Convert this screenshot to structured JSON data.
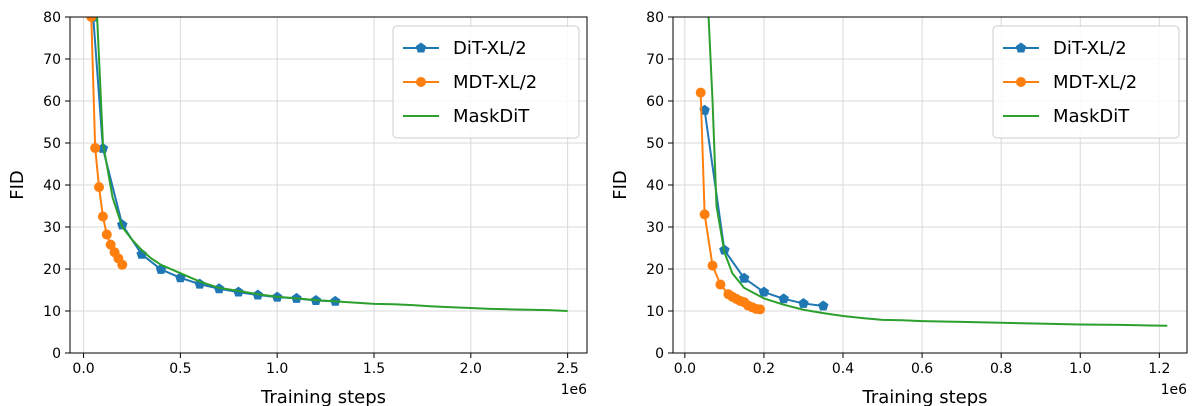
{
  "colors": {
    "dit": "#1f77b4",
    "mdt": "#ff7f0e",
    "maskdit": "#2ca02c",
    "grid": "#d9d9d9"
  },
  "chart_data": [
    {
      "type": "line",
      "xlabel": "Training steps",
      "ylabel": "FID",
      "x_offset_text": "1e6",
      "xlim": [
        -0.07,
        2.6
      ],
      "ylim": [
        0,
        80
      ],
      "xticks": [
        0.0,
        0.5,
        1.0,
        1.5,
        2.0,
        2.5
      ],
      "xtick_labels": [
        "0.0",
        "0.5",
        "1.0",
        "1.5",
        "2.0",
        "2.5"
      ],
      "yticks": [
        0,
        10,
        20,
        30,
        40,
        50,
        60,
        70,
        80
      ],
      "ytick_labels": [
        "0",
        "10",
        "20",
        "30",
        "40",
        "50",
        "60",
        "70",
        "80"
      ],
      "grid": true,
      "legend_position": "top-right",
      "series": [
        {
          "name": "DiT-XL/2",
          "marker": "pentagon",
          "x": [
            0.05,
            0.1,
            0.2,
            0.3,
            0.4,
            0.5,
            0.6,
            0.7,
            0.8,
            0.9,
            1.0,
            1.1,
            1.2,
            1.3
          ],
          "y": [
            80,
            48.7,
            30.5,
            23.5,
            19.9,
            17.9,
            16.4,
            15.3,
            14.5,
            13.8,
            13.3,
            13.0,
            12.5,
            12.3
          ]
        },
        {
          "name": "MDT-XL/2",
          "marker": "circle",
          "x": [
            0.04,
            0.06,
            0.08,
            0.1,
            0.12,
            0.14,
            0.16,
            0.18,
            0.2
          ],
          "y": [
            80,
            48.8,
            39.5,
            32.5,
            28.2,
            25.8,
            24.0,
            22.5,
            21.0
          ]
        },
        {
          "name": "MaskDiT",
          "marker": "none",
          "x": [
            0.07,
            0.1,
            0.15,
            0.2,
            0.25,
            0.3,
            0.35,
            0.4,
            0.5,
            0.6,
            0.7,
            0.8,
            0.9,
            1.0,
            1.1,
            1.2,
            1.3,
            1.4,
            1.5,
            1.6,
            1.7,
            1.8,
            1.9,
            2.0,
            2.1,
            2.2,
            2.3,
            2.4,
            2.5
          ],
          "y": [
            80,
            50,
            37,
            30,
            27,
            24.5,
            22.5,
            21,
            19,
            17,
            15.5,
            14.8,
            14.0,
            13.4,
            13.0,
            12.6,
            12.3,
            12.0,
            11.7,
            11.6,
            11.4,
            11.1,
            10.9,
            10.7,
            10.5,
            10.4,
            10.3,
            10.2,
            10.0
          ]
        }
      ]
    },
    {
      "type": "line",
      "xlabel": "Training steps",
      "ylabel": "FID",
      "x_offset_text": "1e6",
      "xlim": [
        -0.03,
        1.27
      ],
      "ylim": [
        0,
        80
      ],
      "xticks": [
        0.0,
        0.2,
        0.4,
        0.6,
        0.8,
        1.0,
        1.2
      ],
      "xtick_labels": [
        "0.0",
        "0.2",
        "0.4",
        "0.6",
        "0.8",
        "1.0",
        "1.2"
      ],
      "yticks": [
        0,
        10,
        20,
        30,
        40,
        50,
        60,
        70,
        80
      ],
      "ytick_labels": [
        "0",
        "10",
        "20",
        "30",
        "40",
        "50",
        "60",
        "70",
        "80"
      ],
      "grid": true,
      "legend_position": "top-right",
      "series": [
        {
          "name": "DiT-XL/2",
          "marker": "pentagon",
          "x": [
            0.05,
            0.1,
            0.15,
            0.2,
            0.25,
            0.3,
            0.35
          ],
          "y": [
            57.8,
            24.5,
            17.8,
            14.5,
            12.9,
            11.8,
            11.2
          ]
        },
        {
          "name": "MDT-XL/2",
          "marker": "circle",
          "x": [
            0.04,
            0.05,
            0.07,
            0.09,
            0.11,
            0.12,
            0.13,
            0.14,
            0.15,
            0.16,
            0.17,
            0.18,
            0.19
          ],
          "y": [
            62,
            33,
            20.8,
            16.3,
            14,
            13.4,
            12.9,
            12.4,
            12.1,
            11.3,
            10.9,
            10.5,
            10.4
          ]
        },
        {
          "name": "MaskDiT",
          "marker": "none",
          "x": [
            0.06,
            0.07,
            0.08,
            0.1,
            0.12,
            0.15,
            0.2,
            0.25,
            0.3,
            0.35,
            0.4,
            0.45,
            0.5,
            0.55,
            0.6,
            0.7,
            0.8,
            0.9,
            1.0,
            1.1,
            1.15,
            1.22
          ],
          "y": [
            80,
            60,
            35,
            24,
            19,
            15.5,
            13,
            11.5,
            10.3,
            9.5,
            8.8,
            8.3,
            7.9,
            7.8,
            7.6,
            7.4,
            7.2,
            7.0,
            6.8,
            6.7,
            6.6,
            6.5
          ]
        }
      ]
    }
  ]
}
